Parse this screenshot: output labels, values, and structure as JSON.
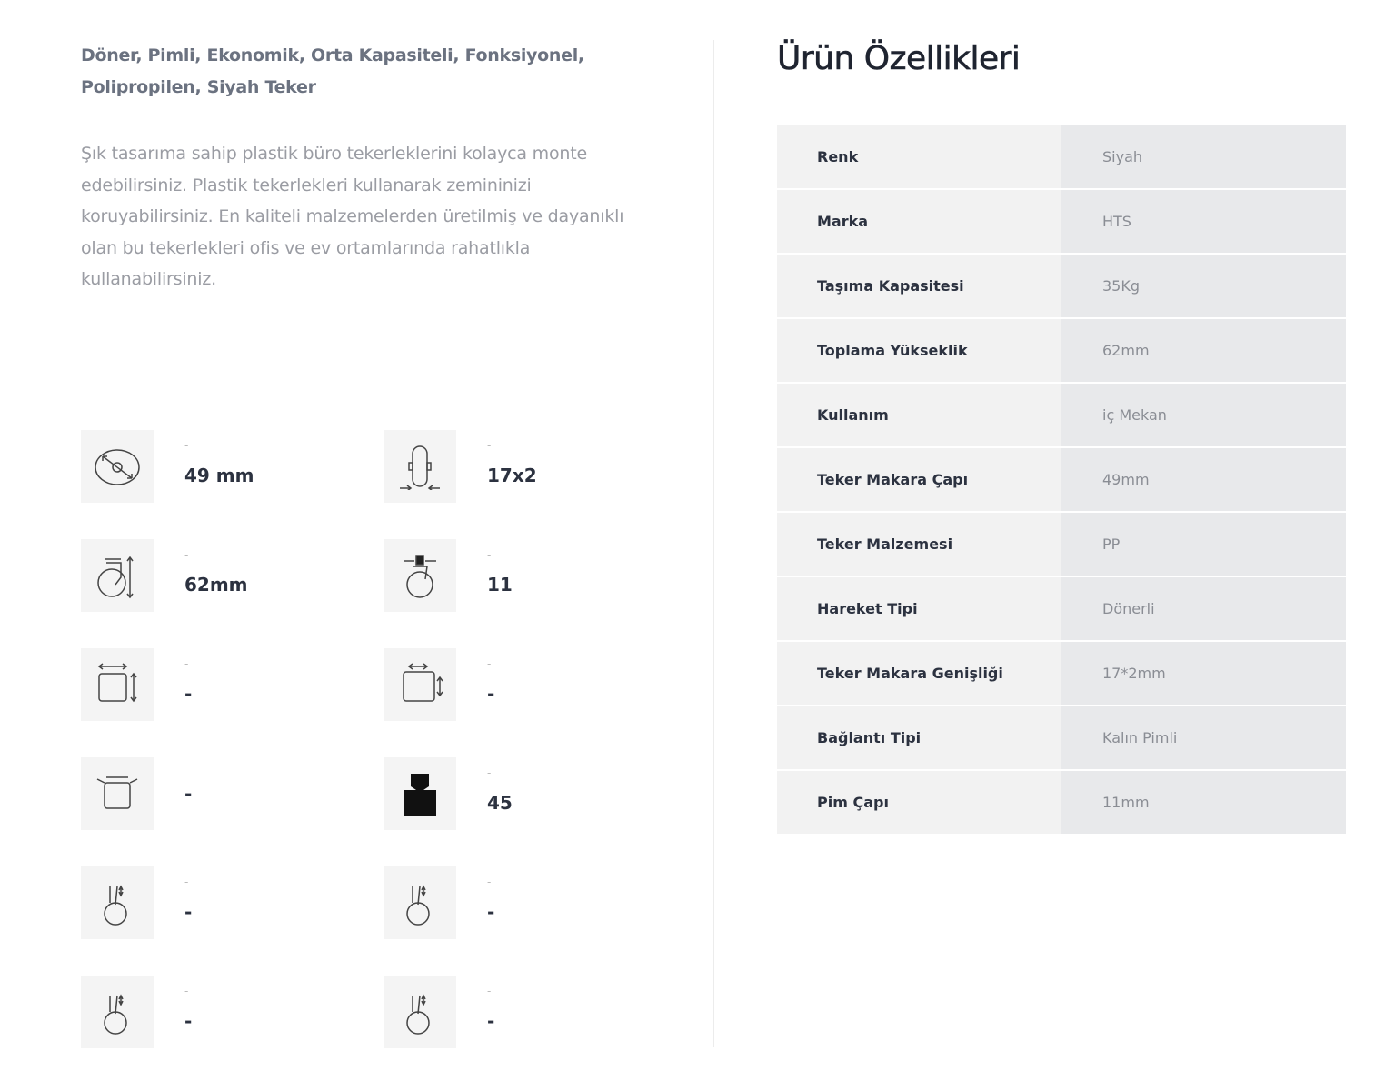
{
  "product": {
    "tags": "Döner, Pimli, Ekonomik, Orta Kapasiteli, Fonksiyonel, Polipropilen, Siyah Teker",
    "description": "Şık tasarıma sahip plastik büro tekerleklerini kolayca monte edebilirsiniz. Plastik tekerlekleri kullanarak zemininizi koruyabilirsiniz. En kaliteli malzemelerden üretilmiş ve dayanıklı olan bu tekerlekleri ofis ve ev ortamlarında rahatlıkla kullanabilirsiniz."
  },
  "specs": [
    {
      "icon": "wheel-diameter-icon",
      "label": "-",
      "value": "49 mm"
    },
    {
      "icon": "wheel-width-icon",
      "label": "-",
      "value": "17x2"
    },
    {
      "icon": "total-height-icon",
      "label": "-",
      "value": "62mm"
    },
    {
      "icon": "pin-diameter-icon",
      "label": "-",
      "value": "11"
    },
    {
      "icon": "plate-size-icon",
      "label": "-",
      "value": "-"
    },
    {
      "icon": "hole-spacing-icon",
      "label": "-",
      "value": "-"
    },
    {
      "icon": "plate-holes-icon",
      "label": "",
      "value": "-"
    },
    {
      "icon": "weight-icon",
      "label": "-",
      "value": "45"
    },
    {
      "icon": "brake-caster-icon",
      "label": "-",
      "value": "-"
    },
    {
      "icon": "brake-caster-icon",
      "label": "-",
      "value": "-"
    },
    {
      "icon": "brake-caster-icon",
      "label": "-",
      "value": "-"
    },
    {
      "icon": "brake-caster-icon",
      "label": "-",
      "value": "-"
    }
  ],
  "features": {
    "title": "Ürün Özellikleri",
    "rows": [
      {
        "key": "Renk",
        "value": "Siyah"
      },
      {
        "key": "Marka",
        "value": "HTS"
      },
      {
        "key": "Taşıma Kapasitesi",
        "value": "35Kg"
      },
      {
        "key": "Toplama Yükseklik",
        "value": "62mm"
      },
      {
        "key": "Kullanım",
        "value": "iç Mekan"
      },
      {
        "key": "Teker Makara Çapı",
        "value": "49mm"
      },
      {
        "key": "Teker Malzemesi",
        "value": "PP"
      },
      {
        "key": "Hareket Tipi",
        "value": "Dönerli"
      },
      {
        "key": "Teker Makara Genişliği",
        "value": "17*2mm"
      },
      {
        "key": "Bağlantı Tipi",
        "value": "Kalın Pimli"
      },
      {
        "key": "Pim Çapı",
        "value": "11mm"
      }
    ]
  }
}
